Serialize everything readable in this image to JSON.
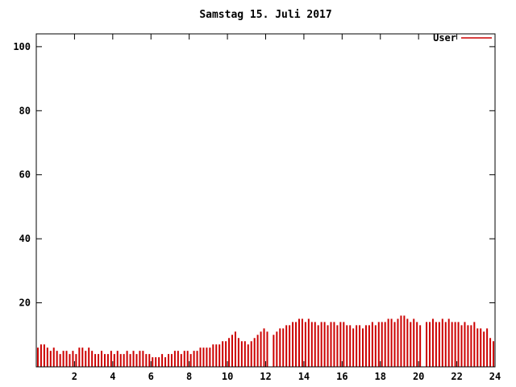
{
  "title": "Samstag 15. Juli 2017",
  "chart_data": {
    "type": "bar",
    "title": "Samstag 15. Juli 2017",
    "xlabel": "",
    "ylabel": "",
    "xlim": [
      0,
      24
    ],
    "ylim": [
      0,
      104
    ],
    "xticks": [
      2,
      4,
      6,
      8,
      10,
      12,
      14,
      16,
      18,
      20,
      22,
      24
    ],
    "yticks": [
      20,
      40,
      60,
      80,
      100
    ],
    "grid": false,
    "legend_position": "top-right",
    "bar_color": "#cc0000",
    "axis_color": "#000000",
    "background_color": "#ffffff",
    "x_unit": "hours",
    "points_per_hour": 6,
    "series": [
      {
        "name": "User",
        "color": "#cc0000",
        "values": [
          6,
          7,
          7,
          6,
          5,
          6,
          5,
          4,
          5,
          5,
          4,
          5,
          4,
          6,
          6,
          5,
          6,
          5,
          4,
          4,
          5,
          4,
          4,
          5,
          4,
          5,
          4,
          4,
          5,
          4,
          5,
          4,
          5,
          5,
          4,
          4,
          3,
          3,
          3,
          4,
          3,
          4,
          4,
          5,
          5,
          4,
          5,
          5,
          4,
          5,
          5,
          6,
          6,
          6,
          6,
          7,
          7,
          7,
          8,
          8,
          9,
          10,
          11,
          9,
          8,
          8,
          7,
          8,
          9,
          10,
          11,
          12,
          11,
          0,
          10,
          11,
          12,
          12,
          13,
          13,
          14,
          14,
          15,
          15,
          14,
          15,
          14,
          14,
          13,
          14,
          14,
          13,
          14,
          14,
          13,
          14,
          14,
          13,
          13,
          12,
          13,
          13,
          12,
          13,
          13,
          14,
          13,
          14,
          14,
          14,
          15,
          15,
          14,
          15,
          16,
          16,
          15,
          14,
          15,
          14,
          13,
          0,
          14,
          14,
          15,
          14,
          14,
          15,
          14,
          15,
          14,
          14,
          14,
          13,
          14,
          13,
          13,
          14,
          12,
          12,
          11,
          12,
          9,
          8
        ]
      }
    ]
  }
}
